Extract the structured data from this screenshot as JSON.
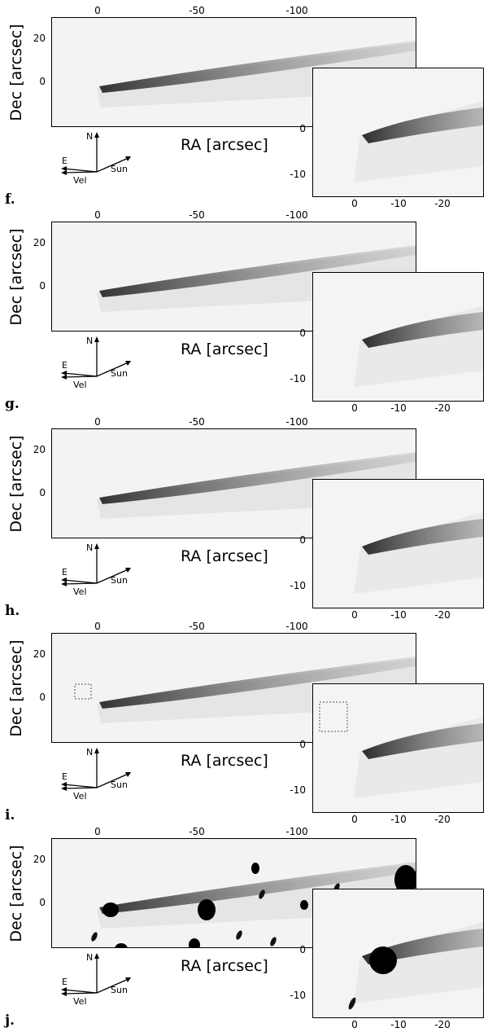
{
  "axes": {
    "dec_label": "Dec [arcsec]",
    "ra_label": "RA [arcsec]",
    "main_top_ticks": [
      "0",
      "-50",
      "-100"
    ],
    "main_y_ticks": [
      "20",
      "0"
    ],
    "inset_x_ticks": [
      "0",
      "-10",
      "-20"
    ],
    "inset_y_ticks": [
      "0",
      "-10"
    ]
  },
  "compass": {
    "north": "N",
    "east": "E",
    "velocity": "Vel",
    "sun": "Sun"
  },
  "panels": [
    {
      "letter": "f."
    },
    {
      "letter": "g."
    },
    {
      "letter": "h."
    },
    {
      "letter": "i."
    },
    {
      "letter": "j."
    }
  ]
}
